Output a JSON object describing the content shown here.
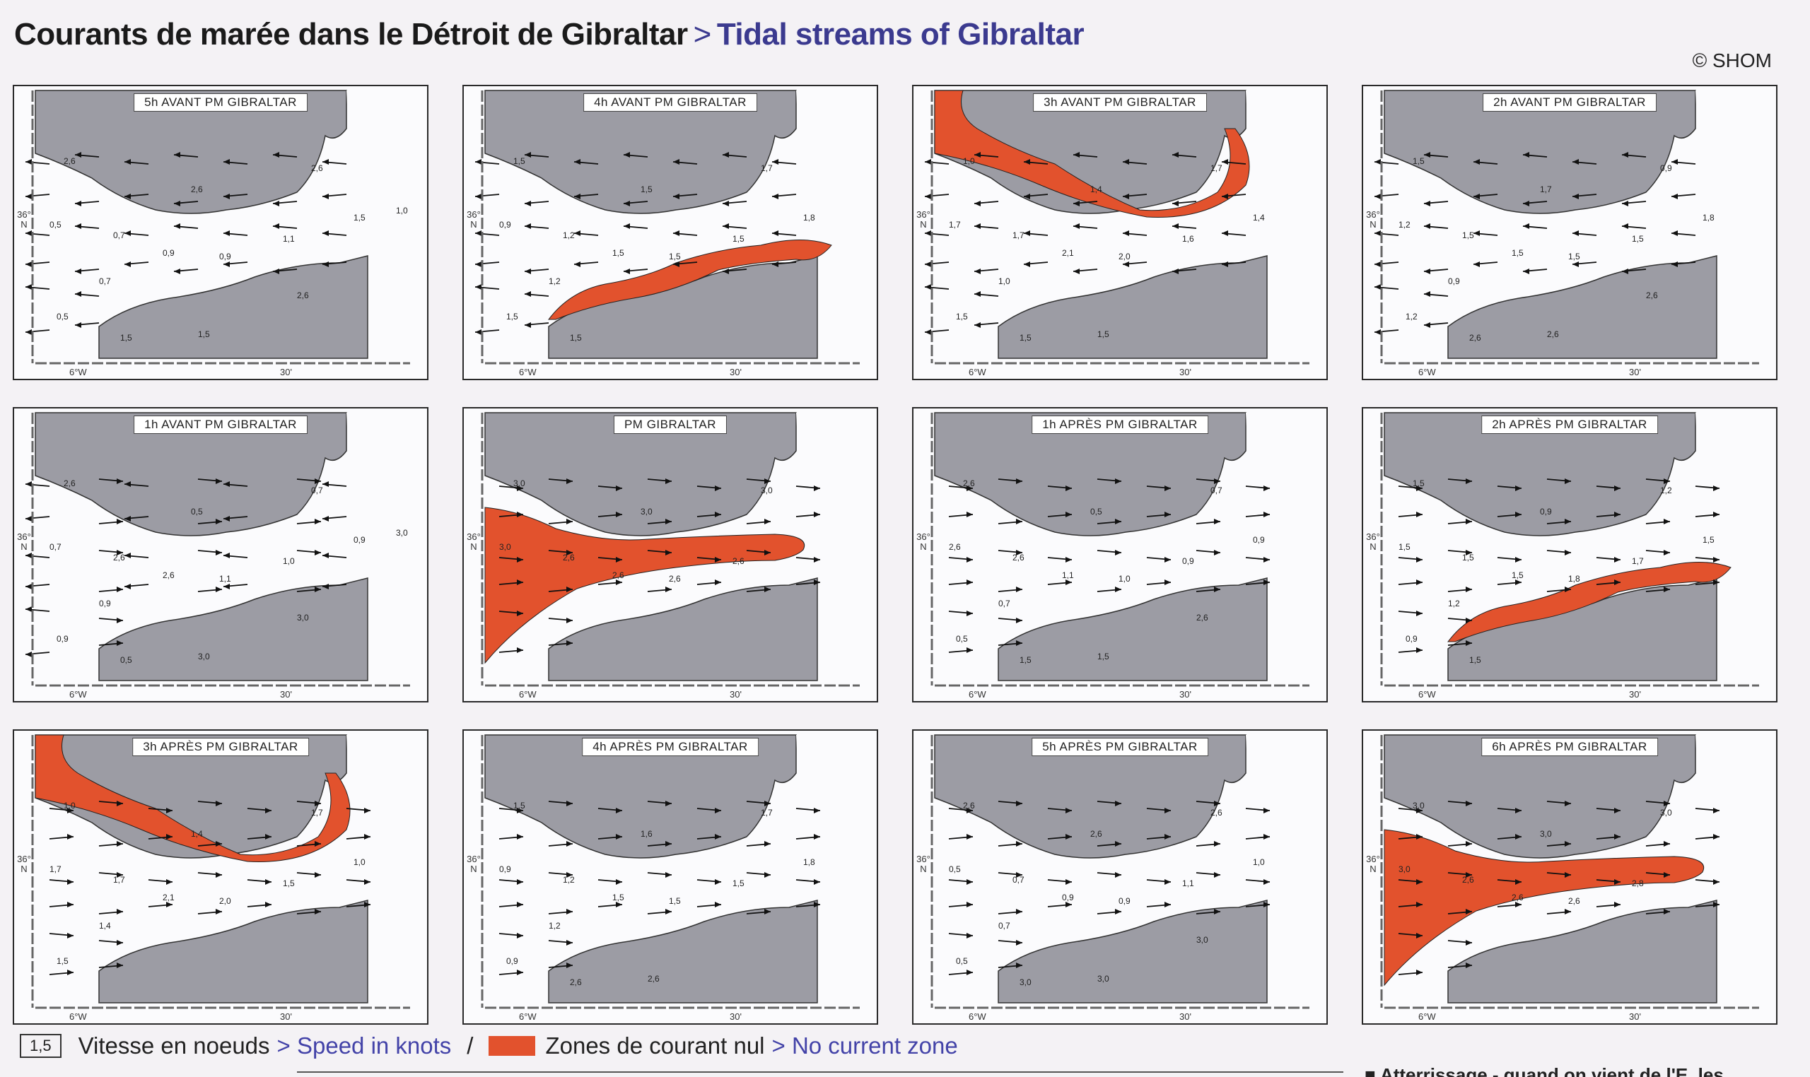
{
  "title": {
    "fr": "Courants de marée dans le Détroit de Gibraltar",
    "separator": ">",
    "en": "Tidal streams of Gibraltar"
  },
  "copyright": "© SHOM",
  "axis": {
    "lat": "36°\nN",
    "lon_left": "6°W",
    "lon_right": "30'"
  },
  "colors": {
    "land": "#9c9ca4",
    "water": "#fbfbfd",
    "zero_current": "#e2522d",
    "accent_blue": "#3b3a8f"
  },
  "panels": [
    {
      "label": "5h AVANT PM GIBRALTAR",
      "zero_zone": "none",
      "direction": "west",
      "speeds": [
        "2,6",
        "2,6",
        "2,6",
        "0,5",
        "0,7",
        "0,9",
        "0,9",
        "1,1",
        "1,5",
        "0,7",
        "0,5",
        "1,5",
        "1,5",
        "2,6",
        "1,0"
      ]
    },
    {
      "label": "4h AVANT PM GIBRALTAR",
      "zero_zone": "south",
      "direction": "west",
      "speeds": [
        "1,5",
        "1,5",
        "1,7",
        "0,9",
        "1,2",
        "1,5",
        "1,5",
        "1,5",
        "1,8",
        "1,2",
        "1,5",
        "1,5"
      ]
    },
    {
      "label": "3h AVANT PM GIBRALTAR",
      "zero_zone": "north",
      "direction": "west",
      "speeds": [
        "1,0",
        "1,4",
        "1,7",
        "1,7",
        "1,7",
        "2,1",
        "2,0",
        "1,6",
        "1,4",
        "1,0",
        "1,5",
        "1,5",
        "1,5"
      ]
    },
    {
      "label": "2h AVANT PM GIBRALTAR",
      "zero_zone": "none",
      "direction": "west",
      "speeds": [
        "1,5",
        "1,7",
        "0,9",
        "1,2",
        "1,5",
        "1,5",
        "1,5",
        "1,5",
        "1,8",
        "0,9",
        "1,2",
        "2,6",
        "2,6",
        "2,6"
      ]
    },
    {
      "label": "1h AVANT PM GIBRALTAR",
      "zero_zone": "none",
      "direction": "mixed",
      "speeds": [
        "2,6",
        "0,5",
        "0,7",
        "0,7",
        "2,6",
        "2,6",
        "1,1",
        "1,0",
        "0,9",
        "0,9",
        "0,9",
        "0,5",
        "3,0",
        "3,0",
        "3,0"
      ]
    },
    {
      "label": "PM GIBRALTAR",
      "zero_zone": "tongue",
      "direction": "east",
      "speeds": [
        "3,0",
        "3,0",
        "3,0",
        "3,0",
        "2,6",
        "2,6",
        "2,6",
        "2,6"
      ]
    },
    {
      "label": "1h APRÈS PM GIBRALTAR",
      "zero_zone": "none",
      "direction": "east",
      "speeds": [
        "2,6",
        "0,5",
        "0,7",
        "2,6",
        "2,6",
        "1,1",
        "1,0",
        "0,9",
        "0,9",
        "0,7",
        "0,5",
        "1,5",
        "1,5",
        "2,6"
      ]
    },
    {
      "label": "2h APRÈS PM GIBRALTAR",
      "zero_zone": "south",
      "direction": "east",
      "speeds": [
        "1,5",
        "0,9",
        "1,2",
        "1,5",
        "1,5",
        "1,5",
        "1,8",
        "1,7",
        "1,5",
        "1,2",
        "0,9",
        "1,5"
      ]
    },
    {
      "label": "3h APRÈS PM GIBRALTAR",
      "zero_zone": "north",
      "direction": "east",
      "speeds": [
        "1,0",
        "1,4",
        "1,7",
        "1,7",
        "1,7",
        "2,1",
        "2,0",
        "1,5",
        "1,0",
        "1,4",
        "1,5"
      ]
    },
    {
      "label": "4h APRÈS PM GIBRALTAR",
      "zero_zone": "none",
      "direction": "east",
      "speeds": [
        "1,5",
        "1,6",
        "1,7",
        "0,9",
        "1,2",
        "1,5",
        "1,5",
        "1,5",
        "1,8",
        "1,2",
        "0,9",
        "2,6",
        "2,6"
      ]
    },
    {
      "label": "5h APRÈS PM GIBRALTAR",
      "zero_zone": "none",
      "direction": "east",
      "speeds": [
        "2,6",
        "2,6",
        "2,6",
        "0,5",
        "0,7",
        "0,9",
        "0,9",
        "1,1",
        "1,0",
        "0,7",
        "0,5",
        "3,0",
        "3,0",
        "3,0"
      ]
    },
    {
      "label": "6h APRÈS PM GIBRALTAR",
      "zero_zone": "tongue",
      "direction": "east",
      "speeds": [
        "3,0",
        "3,0",
        "3,0",
        "3,0",
        "2,6",
        "2,6",
        "2,6",
        "2,8"
      ]
    }
  ],
  "legend": {
    "speed_example": "1,5",
    "speed_fr": "Vitesse en noeuds",
    "speed_en": "> Speed in knots",
    "slash": "/",
    "zone_fr": "Zones de courant nul",
    "zone_en": "> No current zone"
  },
  "footer_snippet": "■ Atterrissage - quand on vient de l'E, les"
}
